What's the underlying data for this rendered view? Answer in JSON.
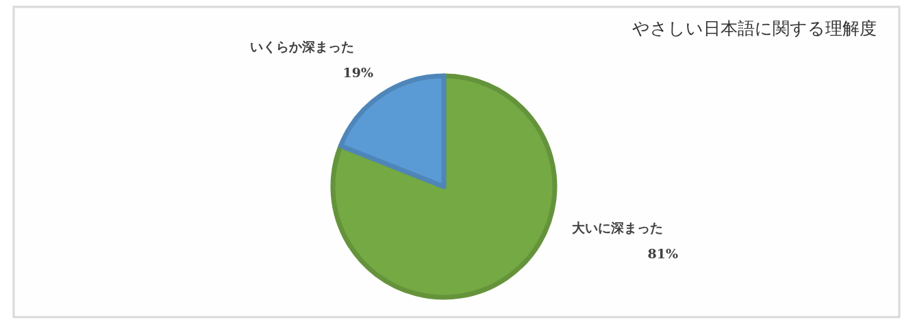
{
  "chart_data": {
    "type": "pie",
    "title": "やさしい日本語に関する理解度",
    "categories": [
      "大いに深まった",
      "いくらか深まった"
    ],
    "values": [
      81,
      19
    ],
    "value_labels": [
      "81%",
      "19%"
    ],
    "colors": [
      "#74a944",
      "#5b9bd5"
    ]
  }
}
